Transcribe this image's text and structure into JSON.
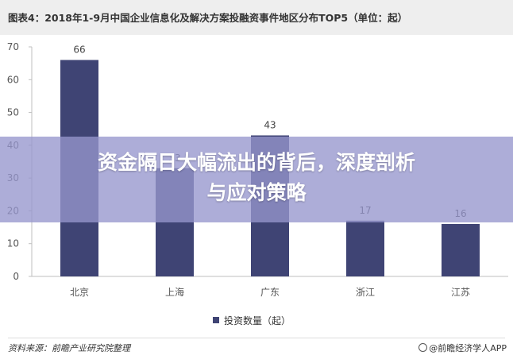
{
  "header": {
    "title": "图表4：2018年1-9月中国企业信息化及解决方案投融资事件地区分布TOP5（单位：起）"
  },
  "chart_data": {
    "type": "bar",
    "categories": [
      "北京",
      "上海",
      "广东",
      "浙江",
      "江苏"
    ],
    "series": [
      {
        "name": "投资数量（起）",
        "values": [
          66,
          33,
          43,
          17,
          16
        ]
      }
    ],
    "data_labels": [
      "66",
      "33",
      "43",
      "17",
      "16"
    ],
    "ylim": [
      0,
      70
    ],
    "yticks": [
      "0",
      "10",
      "20",
      "30",
      "40",
      "50",
      "60",
      "70"
    ],
    "grid": false,
    "legend_position": "bottom",
    "bar_color": "#3f4474"
  },
  "overlay": {
    "line1": "资金隔日大幅流出的背后，深度剖析",
    "line2": "与应对策略"
  },
  "footer": {
    "source": "资料来源：前瞻产业研究院整理",
    "brand": "@前瞻经济学人APP"
  }
}
